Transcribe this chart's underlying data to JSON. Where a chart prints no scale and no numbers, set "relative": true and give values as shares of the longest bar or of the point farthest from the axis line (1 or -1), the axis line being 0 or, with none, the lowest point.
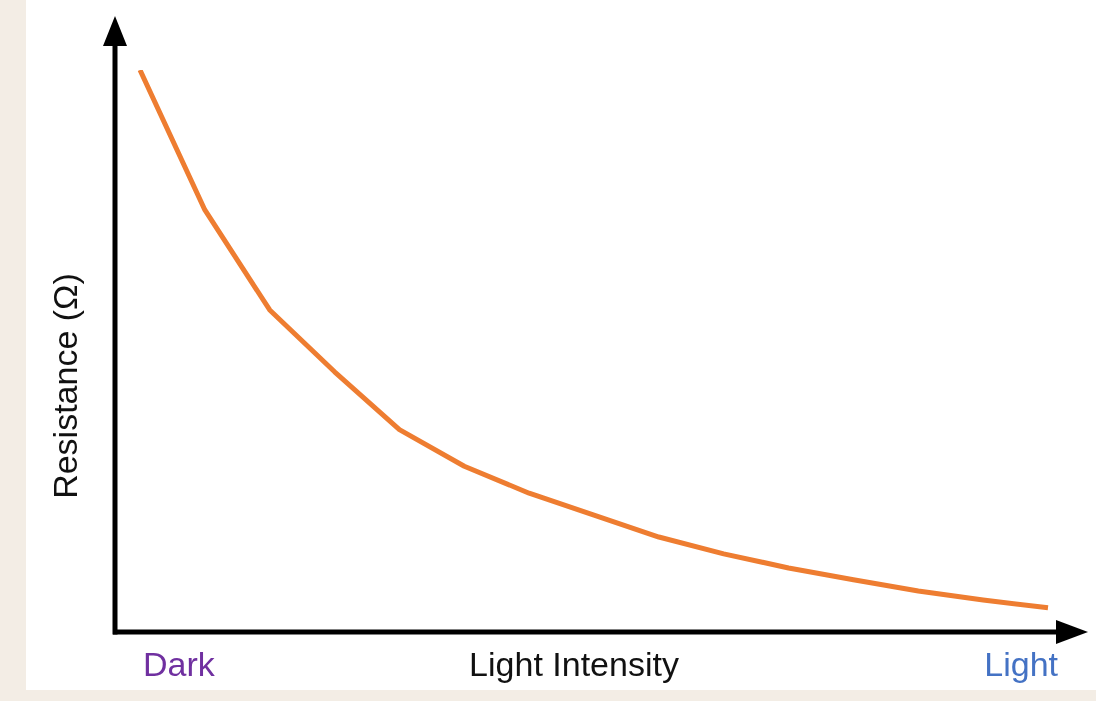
{
  "chart_data": {
    "type": "line",
    "relative": true,
    "xlabel": "Light Intensity",
    "ylabel": "Resistance (Ω)",
    "categories": [
      null,
      null,
      null,
      null,
      null,
      null,
      null,
      null,
      null,
      null,
      null,
      null,
      null,
      null,
      null
    ],
    "annotations": [
      "Dark",
      "Light"
    ],
    "series": [
      {
        "color": "#ee7d31",
        "values": [
          1,
          0.751,
          0.573,
          0.463,
          0.36,
          0.295,
          0.247,
          0.208,
          0.169,
          0.139,
          0.114,
          0.093,
          0.073,
          0.057,
          0.043
        ]
      }
    ],
    "grid": false,
    "legend": false,
    "marker": "none",
    "line_style": "solid"
  }
}
